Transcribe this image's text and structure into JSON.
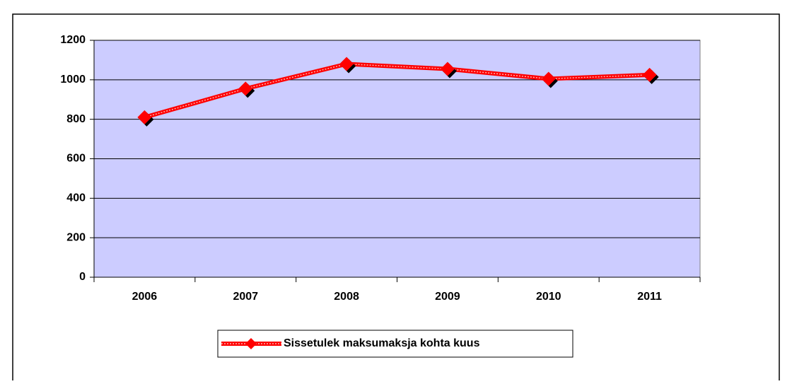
{
  "chart_data": {
    "type": "line",
    "categories": [
      "2006",
      "2007",
      "2008",
      "2009",
      "2010",
      "2011"
    ],
    "series": [
      {
        "name": "Sissetulek maksumaksja kohta kuus",
        "color": "#ff0000",
        "values": [
          810,
          955,
          1080,
          1055,
          1005,
          1025
        ]
      }
    ],
    "ylim": [
      0,
      1200
    ],
    "yticks": [
      0,
      200,
      400,
      600,
      800,
      1000,
      1200
    ],
    "grid": true,
    "legend": "bottom"
  }
}
